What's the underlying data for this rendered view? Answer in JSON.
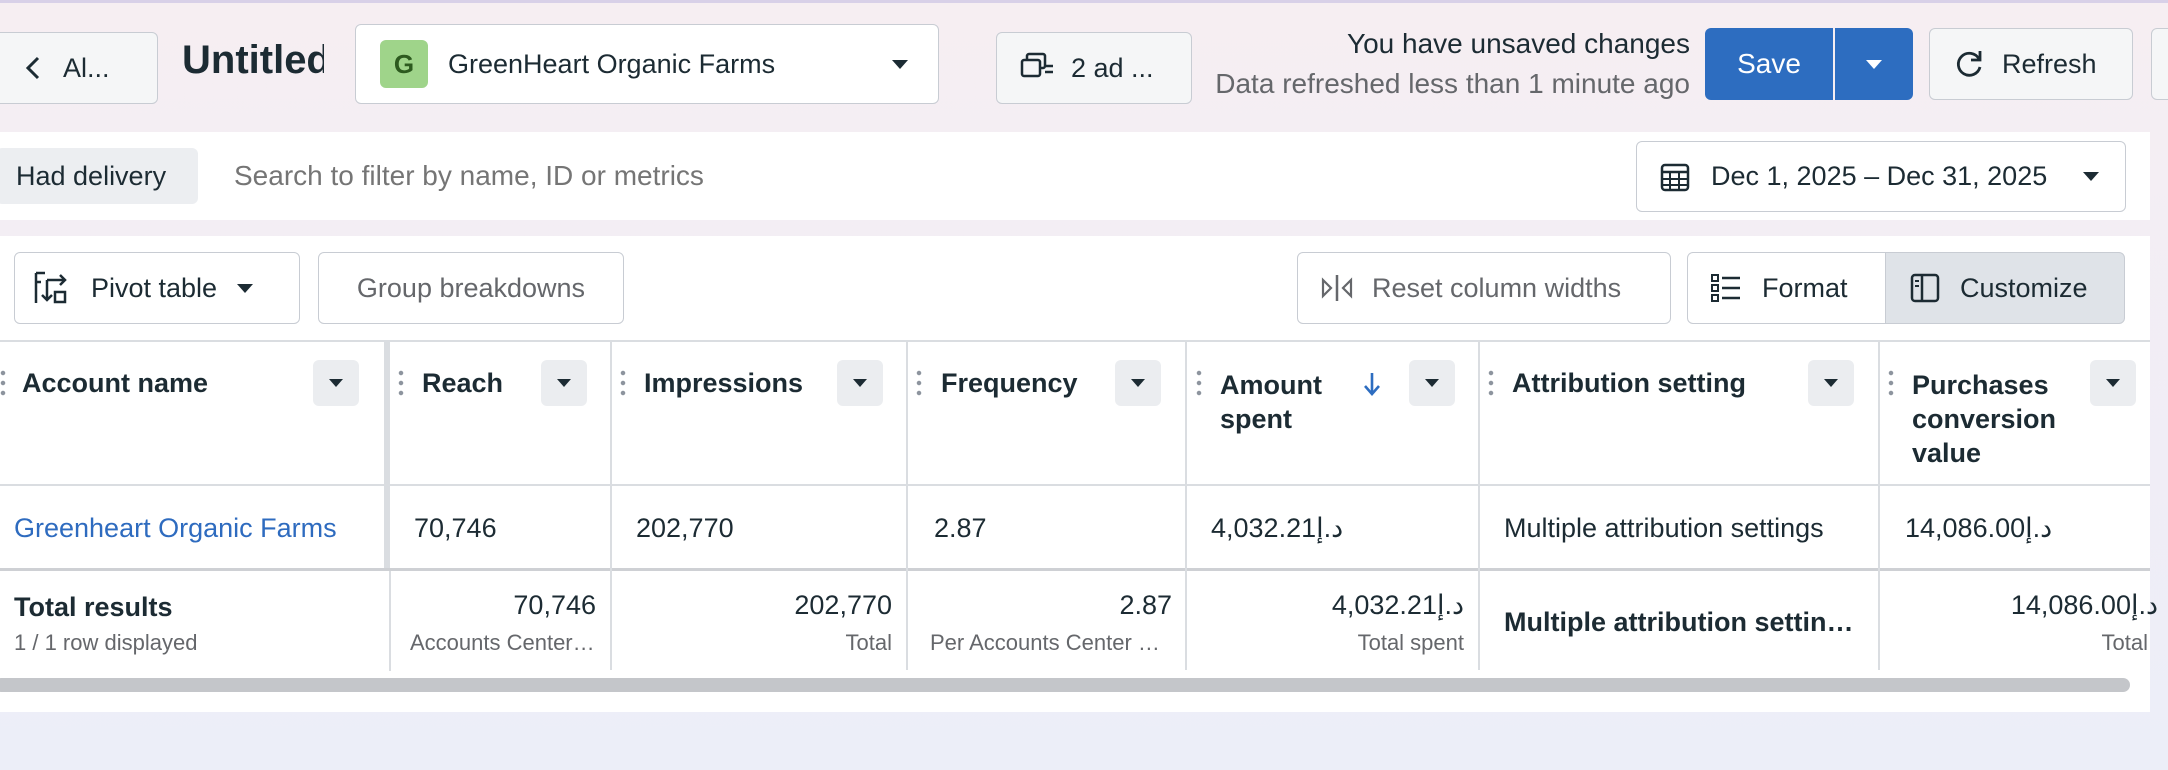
{
  "header": {
    "back_label": "Al...",
    "report_title": "Untitled",
    "account": {
      "avatar_letter": "G",
      "name": "GreenHeart Organic Farms"
    },
    "ads_label": "2 ad ...",
    "unsaved_text": "You have unsaved changes",
    "refreshed_text": "Data refreshed less than 1 minute ago",
    "save_label": "Save",
    "refresh_label": "Refresh"
  },
  "filter_bar": {
    "chip_label": "Had delivery",
    "search_placeholder": "Search to filter by name, ID or metrics",
    "date_range": "Dec 1, 2025 – Dec 31, 2025"
  },
  "toolbar": {
    "pivot_label": "Pivot table",
    "group_label": "Group breakdowns",
    "reset_label": "Reset column widths",
    "format_label": "Format",
    "customize_label": "Customize"
  },
  "table": {
    "columns": [
      {
        "label": "Account name"
      },
      {
        "label": "Reach"
      },
      {
        "label": "Impressions"
      },
      {
        "label": "Frequency"
      },
      {
        "label": "Amount spent"
      },
      {
        "label": "Attribution setting"
      },
      {
        "label": "Purchases conversion value"
      }
    ],
    "rows": [
      [
        "Greenheart Organic Farms",
        "70,746",
        "202,770",
        "2.87",
        "4,032.21د.إ",
        "Multiple attribution settings",
        "14,086.00د.إ"
      ]
    ],
    "totals": {
      "title": "Total results",
      "subtitle": "1 / 1 row displayed",
      "values": [
        "70,746",
        "202,770",
        "2.87",
        "4,032.21د.إ",
        "Multiple attribution settings",
        "14,086.00د.إ"
      ],
      "notes": [
        "Accounts Center accounts",
        "Total",
        "Per Accounts Center account",
        "Total spent",
        "",
        "Total"
      ]
    }
  },
  "colors": {
    "primary": "#2d6dc0",
    "link": "#2e6bbf",
    "avatar_bg": "#9fd48a"
  }
}
